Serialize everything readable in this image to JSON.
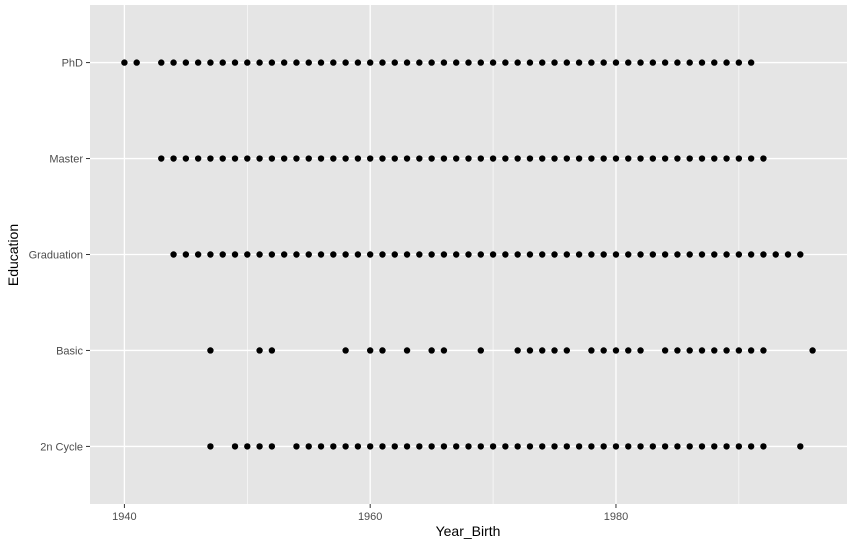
{
  "chart_data": {
    "type": "scatter",
    "title": "",
    "xlabel": "Year_Birth",
    "ylabel": "Education",
    "xlim": [
      1937.2,
      1998.8
    ],
    "x_ticks": [
      {
        "value": 1940,
        "label": "1940"
      },
      {
        "value": 1960,
        "label": "1960"
      },
      {
        "value": 1980,
        "label": "1980"
      }
    ],
    "x_minor_ticks": [
      1950,
      1970,
      1990
    ],
    "categories": [
      "2n Cycle",
      "Basic",
      "Graduation",
      "Master",
      "PhD"
    ],
    "grid": true,
    "colors": {
      "panel": "#e5e5e5",
      "grid": "#ffffff",
      "point": "#000000",
      "tick": "#4d4d4d",
      "axis_title": "#000000"
    },
    "series": [
      {
        "category": "PhD",
        "x": [
          1940,
          1941,
          1943,
          1944,
          1945,
          1946,
          1947,
          1948,
          1949,
          1950,
          1951,
          1952,
          1953,
          1954,
          1955,
          1956,
          1957,
          1958,
          1959,
          1960,
          1961,
          1962,
          1963,
          1964,
          1965,
          1966,
          1967,
          1968,
          1969,
          1970,
          1971,
          1972,
          1973,
          1974,
          1975,
          1976,
          1977,
          1978,
          1979,
          1980,
          1981,
          1982,
          1983,
          1984,
          1985,
          1986,
          1987,
          1988,
          1989,
          1990,
          1991
        ]
      },
      {
        "category": "Master",
        "x": [
          1943,
          1944,
          1945,
          1946,
          1947,
          1948,
          1949,
          1950,
          1951,
          1952,
          1953,
          1954,
          1955,
          1956,
          1957,
          1958,
          1959,
          1960,
          1961,
          1962,
          1963,
          1964,
          1965,
          1966,
          1967,
          1968,
          1969,
          1970,
          1971,
          1972,
          1973,
          1974,
          1975,
          1976,
          1977,
          1978,
          1979,
          1980,
          1981,
          1982,
          1983,
          1984,
          1985,
          1986,
          1987,
          1988,
          1989,
          1990,
          1991,
          1992
        ]
      },
      {
        "category": "Graduation",
        "x": [
          1944,
          1945,
          1946,
          1947,
          1948,
          1949,
          1950,
          1951,
          1952,
          1953,
          1954,
          1955,
          1956,
          1957,
          1958,
          1959,
          1960,
          1961,
          1962,
          1963,
          1964,
          1965,
          1966,
          1967,
          1968,
          1969,
          1970,
          1971,
          1972,
          1973,
          1974,
          1975,
          1976,
          1977,
          1978,
          1979,
          1980,
          1981,
          1982,
          1983,
          1984,
          1985,
          1986,
          1987,
          1988,
          1989,
          1990,
          1991,
          1992,
          1993,
          1994,
          1995
        ]
      },
      {
        "category": "Basic",
        "x": [
          1947,
          1951,
          1952,
          1958,
          1960,
          1961,
          1963,
          1965,
          1966,
          1969,
          1972,
          1973,
          1974,
          1975,
          1976,
          1978,
          1979,
          1980,
          1981,
          1982,
          1984,
          1985,
          1986,
          1987,
          1988,
          1989,
          1990,
          1991,
          1992,
          1996
        ]
      },
      {
        "category": "2n Cycle",
        "x": [
          1947,
          1949,
          1950,
          1951,
          1952,
          1954,
          1955,
          1956,
          1957,
          1958,
          1959,
          1960,
          1961,
          1962,
          1963,
          1964,
          1965,
          1966,
          1967,
          1968,
          1969,
          1970,
          1971,
          1972,
          1973,
          1974,
          1975,
          1976,
          1977,
          1978,
          1979,
          1980,
          1981,
          1982,
          1983,
          1984,
          1985,
          1986,
          1987,
          1988,
          1989,
          1990,
          1991,
          1992,
          1995
        ]
      }
    ]
  }
}
